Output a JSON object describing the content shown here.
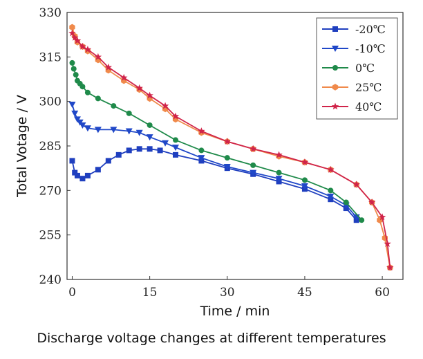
{
  "caption": "Discharge voltage changes at different temperatures",
  "chart_data": {
    "type": "line",
    "xlabel": "Time / min",
    "ylabel": "Total Votage / V",
    "xlim": [
      -1,
      64
    ],
    "ylim": [
      240,
      330
    ],
    "xticks": [
      0,
      15,
      30,
      45,
      60
    ],
    "yticks": [
      240,
      255,
      270,
      285,
      300,
      315,
      330
    ],
    "legend_position": "top-right",
    "series": [
      {
        "name": "-20℃",
        "color": "#1f3fbf",
        "marker": "square",
        "x": [
          0,
          0.5,
          1,
          2,
          3,
          5,
          7,
          9,
          11,
          13,
          15,
          17,
          20,
          25,
          30,
          35,
          40,
          45,
          50,
          53,
          55
        ],
        "y": [
          280,
          276,
          275,
          274,
          275,
          277,
          280,
          282,
          283.5,
          284,
          284,
          283.5,
          282,
          280,
          277.5,
          275.5,
          273,
          270.5,
          267,
          264,
          260
        ]
      },
      {
        "name": "-10℃",
        "color": "#2048c8",
        "marker": "triangle-down",
        "x": [
          0,
          0.5,
          1,
          1.5,
          2,
          3,
          5,
          8,
          11,
          13,
          15,
          18,
          20,
          25,
          30,
          35,
          40,
          45,
          50,
          53,
          55
        ],
        "y": [
          299,
          296,
          294,
          293,
          292,
          291,
          290.5,
          290.5,
          290,
          289.5,
          288,
          286,
          284.5,
          281,
          278,
          276,
          274,
          271.5,
          268,
          265,
          261
        ]
      },
      {
        "name": "0℃",
        "color": "#1f8a4a",
        "marker": "circle",
        "x": [
          0,
          0.3,
          0.7,
          1,
          1.5,
          2,
          3,
          5,
          8,
          11,
          15,
          20,
          25,
          30,
          35,
          40,
          45,
          50,
          53,
          56
        ],
        "y": [
          313,
          311,
          309,
          307,
          306,
          305,
          303,
          301,
          298.5,
          296,
          292,
          287,
          283.5,
          281,
          278.5,
          276,
          273.5,
          270,
          266,
          260
        ]
      },
      {
        "name": "25℃",
        "color": "#f08a4b",
        "marker": "hexagon",
        "x": [
          0,
          0.5,
          1,
          2,
          3,
          5,
          7,
          10,
          13,
          15,
          18,
          20,
          25,
          30,
          35,
          40,
          45,
          50,
          55,
          58,
          59.5,
          60.5,
          61.5
        ],
        "y": [
          325,
          322,
          320,
          318.5,
          317,
          314,
          310.5,
          307,
          304,
          301,
          297.5,
          294,
          289.5,
          286.5,
          284,
          281.5,
          279.5,
          277,
          272,
          266,
          260,
          254,
          244
        ]
      },
      {
        "name": "40℃",
        "color": "#d0244a",
        "marker": "star",
        "x": [
          0,
          0.5,
          1,
          2,
          3,
          5,
          7,
          10,
          13,
          15,
          18,
          20,
          25,
          30,
          35,
          40,
          45,
          50,
          55,
          58,
          60,
          61,
          61.5
        ],
        "y": [
          323,
          321.5,
          320.5,
          318.5,
          317.5,
          315,
          311.5,
          308,
          304.5,
          302,
          298.5,
          295,
          290,
          286.5,
          284,
          282,
          279.5,
          277,
          272,
          266,
          261,
          252,
          244
        ]
      }
    ]
  }
}
